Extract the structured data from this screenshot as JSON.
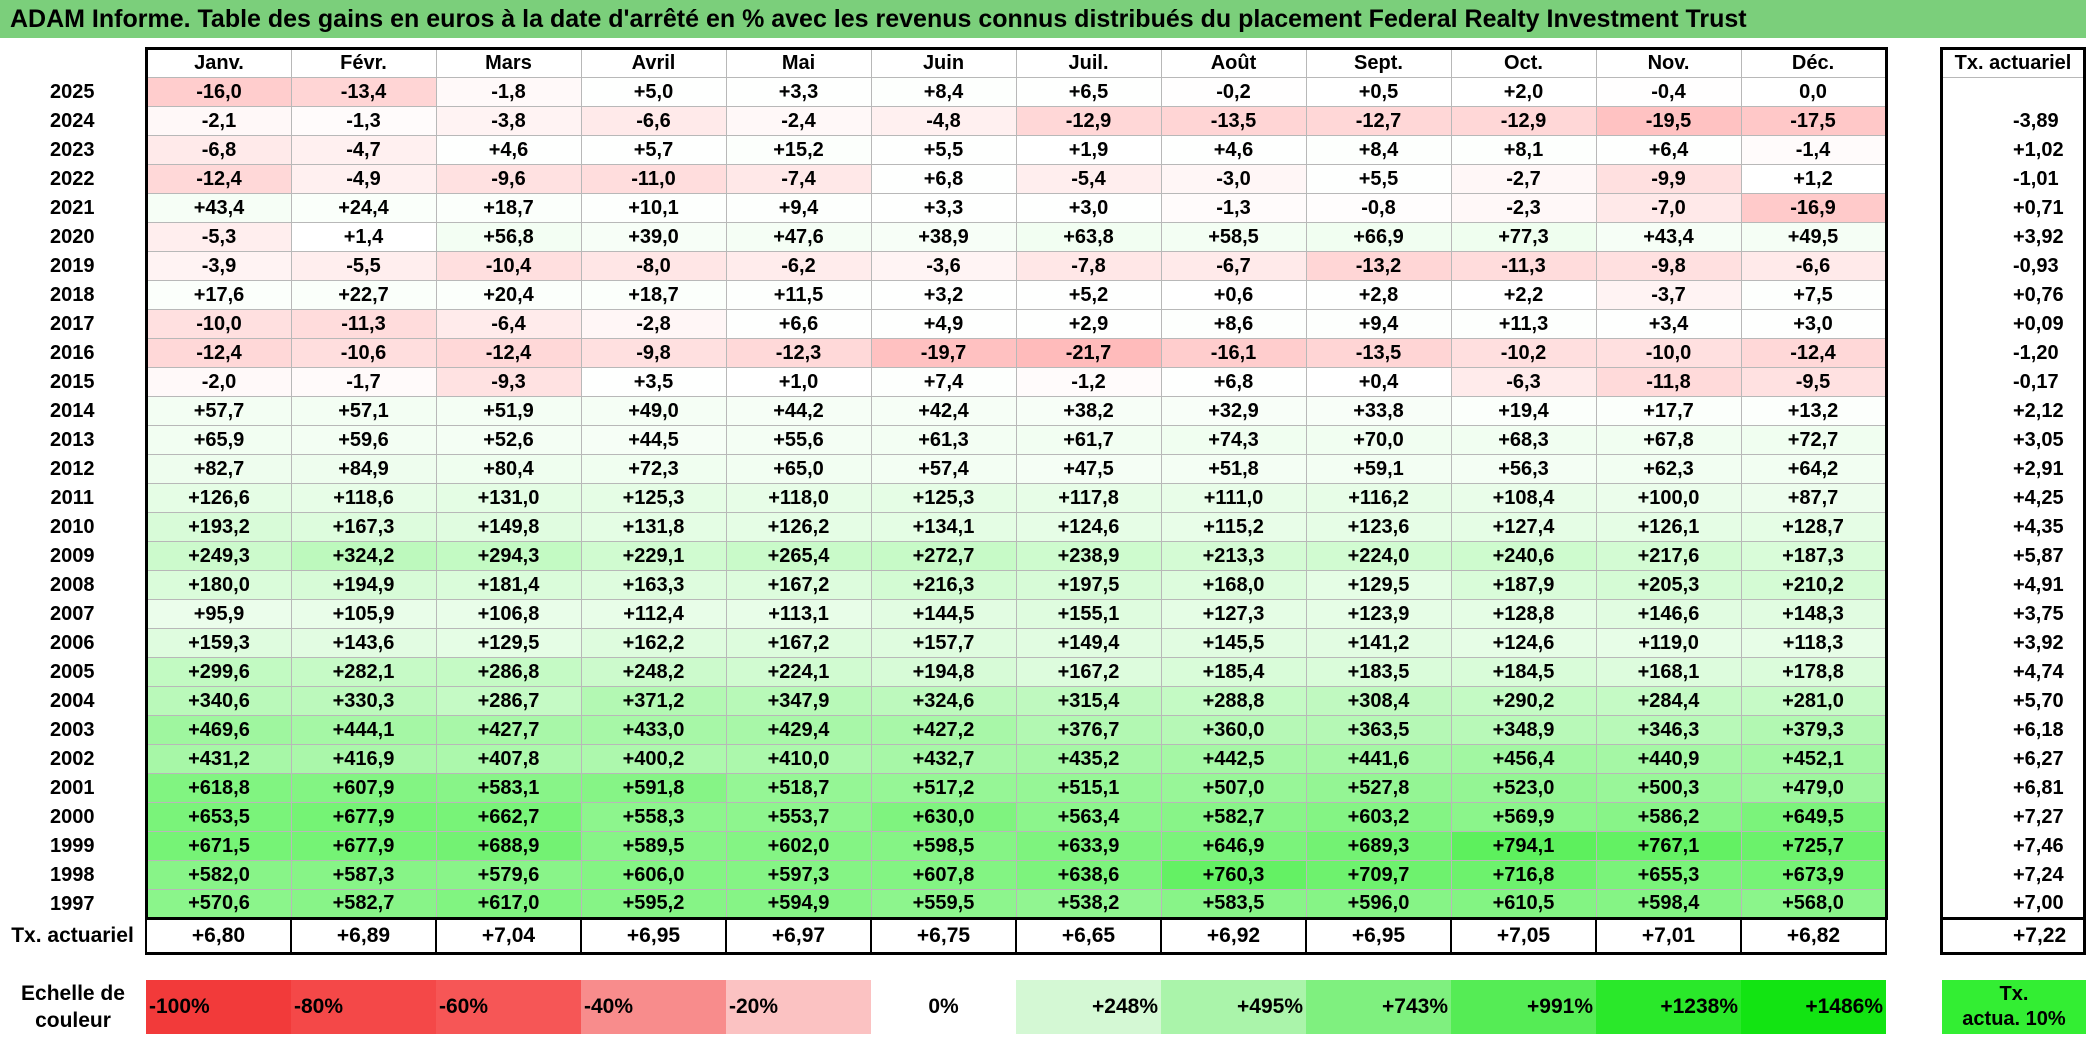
{
  "title": "ADAM Informe. Table des gains en euros à la date d'arrêté en % avec les revenus connus distribués du placement Federal Realty Investment Trust",
  "months": [
    "Janv.",
    "Févr.",
    "Mars",
    "Avril",
    "Mai",
    "Juin",
    "Juil.",
    "Août",
    "Sept.",
    "Oct.",
    "Nov.",
    "Déc."
  ],
  "side_header": "Tx. actuariel",
  "rows": [
    {
      "year": "2025",
      "values": [
        "-16,0",
        "-13,4",
        "-1,8",
        "+5,0",
        "+3,3",
        "+8,4",
        "+6,5",
        "-0,2",
        "+0,5",
        "+2,0",
        "-0,4",
        "0,0"
      ],
      "tx": ""
    },
    {
      "year": "2024",
      "values": [
        "-2,1",
        "-1,3",
        "-3,8",
        "-6,6",
        "-2,4",
        "-4,8",
        "-12,9",
        "-13,5",
        "-12,7",
        "-12,9",
        "-19,5",
        "-17,5"
      ],
      "tx": "-3,89"
    },
    {
      "year": "2023",
      "values": [
        "-6,8",
        "-4,7",
        "+4,6",
        "+5,7",
        "+15,2",
        "+5,5",
        "+1,9",
        "+4,6",
        "+8,4",
        "+8,1",
        "+6,4",
        "-1,4"
      ],
      "tx": "+1,02"
    },
    {
      "year": "2022",
      "values": [
        "-12,4",
        "-4,9",
        "-9,6",
        "-11,0",
        "-7,4",
        "+6,8",
        "-5,4",
        "-3,0",
        "+5,5",
        "-2,7",
        "-9,9",
        "+1,2"
      ],
      "tx": "-1,01"
    },
    {
      "year": "2021",
      "values": [
        "+43,4",
        "+24,4",
        "+18,7",
        "+10,1",
        "+9,4",
        "+3,3",
        "+3,0",
        "-1,3",
        "-0,8",
        "-2,3",
        "-7,0",
        "-16,9"
      ],
      "tx": "+0,71"
    },
    {
      "year": "2020",
      "values": [
        "-5,3",
        "+1,4",
        "+56,8",
        "+39,0",
        "+47,6",
        "+38,9",
        "+63,8",
        "+58,5",
        "+66,9",
        "+77,3",
        "+43,4",
        "+49,5"
      ],
      "tx": "+3,92"
    },
    {
      "year": "2019",
      "values": [
        "-3,9",
        "-5,5",
        "-10,4",
        "-8,0",
        "-6,2",
        "-3,6",
        "-7,8",
        "-6,7",
        "-13,2",
        "-11,3",
        "-9,8",
        "-6,6"
      ],
      "tx": "-0,93"
    },
    {
      "year": "2018",
      "values": [
        "+17,6",
        "+22,7",
        "+20,4",
        "+18,7",
        "+11,5",
        "+3,2",
        "+5,2",
        "+0,6",
        "+2,8",
        "+2,2",
        "-3,7",
        "+7,5"
      ],
      "tx": "+0,76"
    },
    {
      "year": "2017",
      "values": [
        "-10,0",
        "-11,3",
        "-6,4",
        "-2,8",
        "+6,6",
        "+4,9",
        "+2,9",
        "+8,6",
        "+9,4",
        "+11,3",
        "+3,4",
        "+3,0"
      ],
      "tx": "+0,09"
    },
    {
      "year": "2016",
      "values": [
        "-12,4",
        "-10,6",
        "-12,4",
        "-9,8",
        "-12,3",
        "-19,7",
        "-21,7",
        "-16,1",
        "-13,5",
        "-10,2",
        "-10,0",
        "-12,4"
      ],
      "tx": "-1,20"
    },
    {
      "year": "2015",
      "values": [
        "-2,0",
        "-1,7",
        "-9,3",
        "+3,5",
        "+1,0",
        "+7,4",
        "-1,2",
        "+6,8",
        "+0,4",
        "-6,3",
        "-11,8",
        "-9,5"
      ],
      "tx": "-0,17"
    },
    {
      "year": "2014",
      "values": [
        "+57,7",
        "+57,1",
        "+51,9",
        "+49,0",
        "+44,2",
        "+42,4",
        "+38,2",
        "+32,9",
        "+33,8",
        "+19,4",
        "+17,7",
        "+13,2"
      ],
      "tx": "+2,12"
    },
    {
      "year": "2013",
      "values": [
        "+65,9",
        "+59,6",
        "+52,6",
        "+44,5",
        "+55,6",
        "+61,3",
        "+61,7",
        "+74,3",
        "+70,0",
        "+68,3",
        "+67,8",
        "+72,7"
      ],
      "tx": "+3,05"
    },
    {
      "year": "2012",
      "values": [
        "+82,7",
        "+84,9",
        "+80,4",
        "+72,3",
        "+65,0",
        "+57,4",
        "+47,5",
        "+51,8",
        "+59,1",
        "+56,3",
        "+62,3",
        "+64,2"
      ],
      "tx": "+2,91"
    },
    {
      "year": "2011",
      "values": [
        "+126,6",
        "+118,6",
        "+131,0",
        "+125,3",
        "+118,0",
        "+125,3",
        "+117,8",
        "+111,0",
        "+116,2",
        "+108,4",
        "+100,0",
        "+87,7"
      ],
      "tx": "+4,25"
    },
    {
      "year": "2010",
      "values": [
        "+193,2",
        "+167,3",
        "+149,8",
        "+131,8",
        "+126,2",
        "+134,1",
        "+124,6",
        "+115,2",
        "+123,6",
        "+127,4",
        "+126,1",
        "+128,7"
      ],
      "tx": "+4,35"
    },
    {
      "year": "2009",
      "values": [
        "+249,3",
        "+324,2",
        "+294,3",
        "+229,1",
        "+265,4",
        "+272,7",
        "+238,9",
        "+213,3",
        "+224,0",
        "+240,6",
        "+217,6",
        "+187,3"
      ],
      "tx": "+5,87"
    },
    {
      "year": "2008",
      "values": [
        "+180,0",
        "+194,9",
        "+181,4",
        "+163,3",
        "+167,2",
        "+216,3",
        "+197,5",
        "+168,0",
        "+129,5",
        "+187,9",
        "+205,3",
        "+210,2"
      ],
      "tx": "+4,91"
    },
    {
      "year": "2007",
      "values": [
        "+95,9",
        "+105,9",
        "+106,8",
        "+112,4",
        "+113,1",
        "+144,5",
        "+155,1",
        "+127,3",
        "+123,9",
        "+128,8",
        "+146,6",
        "+148,3"
      ],
      "tx": "+3,75"
    },
    {
      "year": "2006",
      "values": [
        "+159,3",
        "+143,6",
        "+129,5",
        "+162,2",
        "+167,2",
        "+157,7",
        "+149,4",
        "+145,5",
        "+141,2",
        "+124,6",
        "+119,0",
        "+118,3"
      ],
      "tx": "+3,92"
    },
    {
      "year": "2005",
      "values": [
        "+299,6",
        "+282,1",
        "+286,8",
        "+248,2",
        "+224,1",
        "+194,8",
        "+167,2",
        "+185,4",
        "+183,5",
        "+184,5",
        "+168,1",
        "+178,8"
      ],
      "tx": "+4,74"
    },
    {
      "year": "2004",
      "values": [
        "+340,6",
        "+330,3",
        "+286,7",
        "+371,2",
        "+347,9",
        "+324,6",
        "+315,4",
        "+288,8",
        "+308,4",
        "+290,2",
        "+284,4",
        "+281,0"
      ],
      "tx": "+5,70"
    },
    {
      "year": "2003",
      "values": [
        "+469,6",
        "+444,1",
        "+427,7",
        "+433,0",
        "+429,4",
        "+427,2",
        "+376,7",
        "+360,0",
        "+363,5",
        "+348,9",
        "+346,3",
        "+379,3"
      ],
      "tx": "+6,18"
    },
    {
      "year": "2002",
      "values": [
        "+431,2",
        "+416,9",
        "+407,8",
        "+400,2",
        "+410,0",
        "+432,7",
        "+435,2",
        "+442,5",
        "+441,6",
        "+456,4",
        "+440,9",
        "+452,1"
      ],
      "tx": "+6,27"
    },
    {
      "year": "2001",
      "values": [
        "+618,8",
        "+607,9",
        "+583,1",
        "+591,8",
        "+518,7",
        "+517,2",
        "+515,1",
        "+507,0",
        "+527,8",
        "+523,0",
        "+500,3",
        "+479,0"
      ],
      "tx": "+6,81"
    },
    {
      "year": "2000",
      "values": [
        "+653,5",
        "+677,9",
        "+662,7",
        "+558,3",
        "+553,7",
        "+630,0",
        "+563,4",
        "+582,7",
        "+603,2",
        "+569,9",
        "+586,2",
        "+649,5"
      ],
      "tx": "+7,27"
    },
    {
      "year": "1999",
      "values": [
        "+671,5",
        "+677,9",
        "+688,9",
        "+589,5",
        "+602,0",
        "+598,5",
        "+633,9",
        "+646,9",
        "+689,3",
        "+794,1",
        "+767,1",
        "+725,7"
      ],
      "tx": "+7,46"
    },
    {
      "year": "1998",
      "values": [
        "+582,0",
        "+587,3",
        "+579,6",
        "+606,0",
        "+597,3",
        "+607,8",
        "+638,6",
        "+760,3",
        "+709,7",
        "+716,8",
        "+655,3",
        "+673,9"
      ],
      "tx": "+7,24"
    },
    {
      "year": "1997",
      "values": [
        "+570,6",
        "+582,7",
        "+617,0",
        "+595,2",
        "+594,9",
        "+559,5",
        "+538,2",
        "+583,5",
        "+596,0",
        "+610,5",
        "+598,4",
        "+568,0"
      ],
      "tx": "+7,00"
    }
  ],
  "tx_row": {
    "label": "Tx. actuariel",
    "values": [
      "+6,80",
      "+6,89",
      "+7,04",
      "+6,95",
      "+6,97",
      "+6,75",
      "+6,65",
      "+6,92",
      "+6,95",
      "+7,05",
      "+7,01",
      "+6,82"
    ],
    "total": "+7,22"
  },
  "scale": {
    "label_line1": "Echelle de",
    "label_line2": "couleur",
    "items": [
      {
        "label": "-100%",
        "color": "#f23a3a",
        "align": "left"
      },
      {
        "label": "-80%",
        "color": "#f44848",
        "align": "left"
      },
      {
        "label": "-60%",
        "color": "#f65656",
        "align": "left"
      },
      {
        "label": "-40%",
        "color": "#f88c8c",
        "align": "left"
      },
      {
        "label": "-20%",
        "color": "#fbc2c2",
        "align": "left"
      },
      {
        "label": "0%",
        "color": "#ffffff",
        "align": "center"
      },
      {
        "label": "+248%",
        "color": "#d4f8d4",
        "align": "right"
      },
      {
        "label": "+495%",
        "color": "#aaf4aa",
        "align": "right"
      },
      {
        "label": "+743%",
        "color": "#7ff07f",
        "align": "right"
      },
      {
        "label": "+991%",
        "color": "#55ec55",
        "align": "right"
      },
      {
        "label": "+1238%",
        "color": "#2ae82a",
        "align": "right"
      },
      {
        "label": "+1486%",
        "color": "#12e412",
        "align": "right"
      }
    ],
    "tx_line1": "Tx.",
    "tx_line2": "actua. 10%"
  }
}
